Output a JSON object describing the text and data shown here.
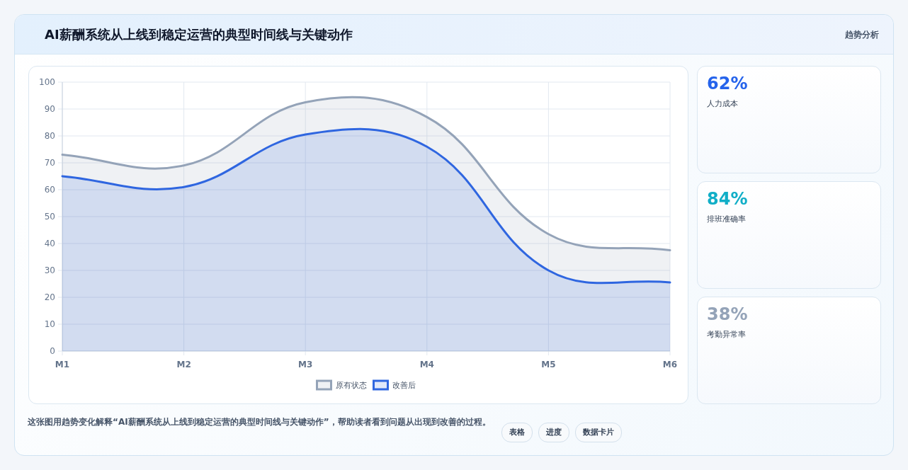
{
  "chart_data": [
    {
      "type": "area",
      "title": "AI薪酬系统从上线到稳定运营的典型时间线与关键动作",
      "categories": [
        "M1",
        "M2",
        "M3",
        "M4",
        "M5",
        "M6"
      ],
      "series": [
        {
          "name": "原有状态",
          "color": "#94a3b8",
          "values": [
            73,
            69,
            92.5,
            87,
            43.5,
            37.5
          ]
        },
        {
          "name": "改善后",
          "color": "#2f66e0",
          "values": [
            65,
            61,
            80.5,
            76,
            30,
            25.5
          ]
        }
      ],
      "ylim": [
        0,
        100
      ],
      "yticks": [
        0,
        10,
        20,
        30,
        40,
        50,
        60,
        70,
        80,
        90,
        100
      ],
      "grid": true,
      "legend": "bottom",
      "annotations": [
        "这张图用趋势变化解释“AI薪酬系统从上线到稳定运营的典型时间线与关键动作”，帮助读者看到问题从出现到改善的过程。",
        "表格",
        "进度",
        "数据卡片"
      ]
    },
    {
      "type": "other",
      "title": "趋势分析",
      "categories": [
        "人力成本",
        "排班准确率",
        "考勤异常率"
      ],
      "value_labels": [
        "62%",
        "84%",
        "38%"
      ]
    }
  ]
}
